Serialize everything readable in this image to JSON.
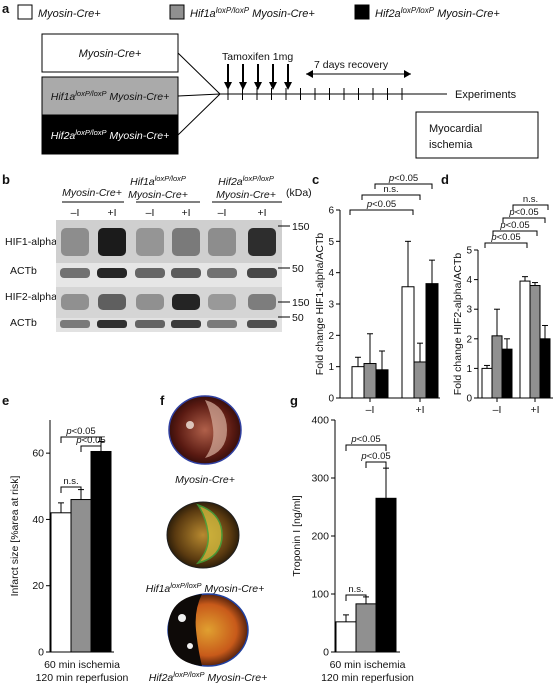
{
  "panels": {
    "a": "a",
    "b": "b",
    "c": "c",
    "d": "d",
    "e": "e",
    "f": "f",
    "g": "g"
  },
  "legend": [
    {
      "label": "Myosin-Cre+",
      "color": "#ffffff"
    },
    {
      "gene": "Hif1a",
      "sup": "loxP/loxP",
      "rest": " Myosin-Cre+",
      "color": "#909090"
    },
    {
      "gene": "Hif2a",
      "sup": "loxP/loxP",
      "rest": " Myosin-Cre+",
      "color": "#000000"
    }
  ],
  "scheme": {
    "groups": [
      {
        "label": "Myosin-Cre+"
      },
      {
        "gene": "Hif1a",
        "sup": "loxP/loxP",
        "rest": " Myosin-Cre+"
      },
      {
        "gene": "Hif2a",
        "sup": "loxP/loxP",
        "rest": " Myosin-Cre+"
      }
    ],
    "tamoxifen": "Tamoxifen 1mg",
    "recovery": "7 days recovery",
    "experiments": "Experiments",
    "outcome": [
      "Myocardial",
      "ischemia"
    ]
  },
  "blot": {
    "groups": [
      {
        "l1": "Myosin-Cre+",
        "l2": ""
      },
      {
        "l1": "Hif1a",
        "sup": "loxP/loxP",
        "l2": "Myosin-Cre+"
      },
      {
        "l1": "Hif2a",
        "sup": "loxP/loxP",
        "l2": "Myosin-Cre+"
      }
    ],
    "kda": "(kDa)",
    "conds": [
      "–I",
      "+I"
    ],
    "rows": [
      "HIF1-alpha",
      "ACTb",
      "HIF2-alpha",
      "ACTb"
    ],
    "markers": [
      "150",
      "50",
      "150",
      "50"
    ]
  },
  "chart_data": [
    {
      "id": "c",
      "type": "bar",
      "ylabel": "Fold change HIF1-alpha/ACTb",
      "groups": [
        "–I",
        "+I"
      ],
      "ylim": [
        0,
        6
      ],
      "yticks": [
        "0",
        "1",
        "2",
        "3",
        "4",
        "5",
        "6"
      ],
      "series": [
        {
          "color": "#ffffff",
          "values": [
            1.0,
            3.55
          ],
          "err": [
            0.3,
            1.45
          ]
        },
        {
          "color": "#909090",
          "values": [
            1.1,
            1.15
          ],
          "err": [
            0.95,
            0.6
          ]
        },
        {
          "color": "#000000",
          "values": [
            0.9,
            3.65
          ],
          "err": [
            0.6,
            0.75
          ]
        }
      ],
      "sig": [
        "p<0.05",
        "n.s.",
        "p<0.05"
      ]
    },
    {
      "id": "d",
      "type": "bar",
      "ylabel": "Fold change HIF2-alpha/ACTb",
      "groups": [
        "–I",
        "+I"
      ],
      "ylim": [
        0,
        5
      ],
      "yticks": [
        "0",
        "1",
        "2",
        "3",
        "4",
        "5"
      ],
      "series": [
        {
          "color": "#ffffff",
          "values": [
            1.0,
            3.95
          ],
          "err": [
            0.1,
            0.15
          ]
        },
        {
          "color": "#909090",
          "values": [
            2.1,
            3.8
          ],
          "err": [
            0.9,
            0.1
          ]
        },
        {
          "color": "#000000",
          "values": [
            1.65,
            2.0
          ],
          "err": [
            0.35,
            0.45
          ]
        }
      ],
      "sig": [
        "p<0.05",
        "p<0.05",
        "p<0.05",
        "n.s."
      ]
    },
    {
      "id": "e",
      "type": "bar",
      "ylabel": "Infarct size [%area at risk]",
      "categories": [
        "Myosin-Cre+",
        "Hif1a loxP/loxP Myosin-Cre+",
        "Hif2a loxP/loxP Myosin-Cre+"
      ],
      "ylim": [
        0,
        70
      ],
      "yticks": [
        "0",
        "20",
        "40",
        "60"
      ],
      "values": [
        42,
        46,
        60.5
      ],
      "err": [
        3,
        3,
        3
      ],
      "colors": [
        "#ffffff",
        "#909090",
        "#000000"
      ],
      "sig": [
        "n.s.",
        "p<0.05",
        "p<0.05"
      ],
      "xlabel": [
        "60 min ischemia",
        "120 min reperfusion"
      ]
    },
    {
      "id": "g",
      "type": "bar",
      "ylabel": "Troponin I [ng/ml]",
      "categories": [
        "Myosin-Cre+",
        "Hif1a loxP/loxP Myosin-Cre+",
        "Hif2a loxP/loxP Myosin-Cre+"
      ],
      "ylim": [
        0,
        400
      ],
      "yticks": [
        "0",
        "100",
        "200",
        "300",
        "400"
      ],
      "values": [
        52,
        83,
        265
      ],
      "err": [
        12,
        12,
        52
      ],
      "colors": [
        "#ffffff",
        "#909090",
        "#000000"
      ],
      "sig": [
        "n.s.",
        "p<0.05",
        "p<0.05"
      ],
      "xlabel": [
        "60 min ischemia",
        "120 min reperfusion"
      ]
    }
  ],
  "hearts": [
    {
      "label": "Myosin-Cre+"
    },
    {
      "gene": "Hif1a",
      "sup": "loxP/loxP",
      "rest": " Myosin-Cre+"
    },
    {
      "gene": "Hif2a",
      "sup": "loxP/loxP",
      "rest": " Myosin-Cre+"
    }
  ]
}
